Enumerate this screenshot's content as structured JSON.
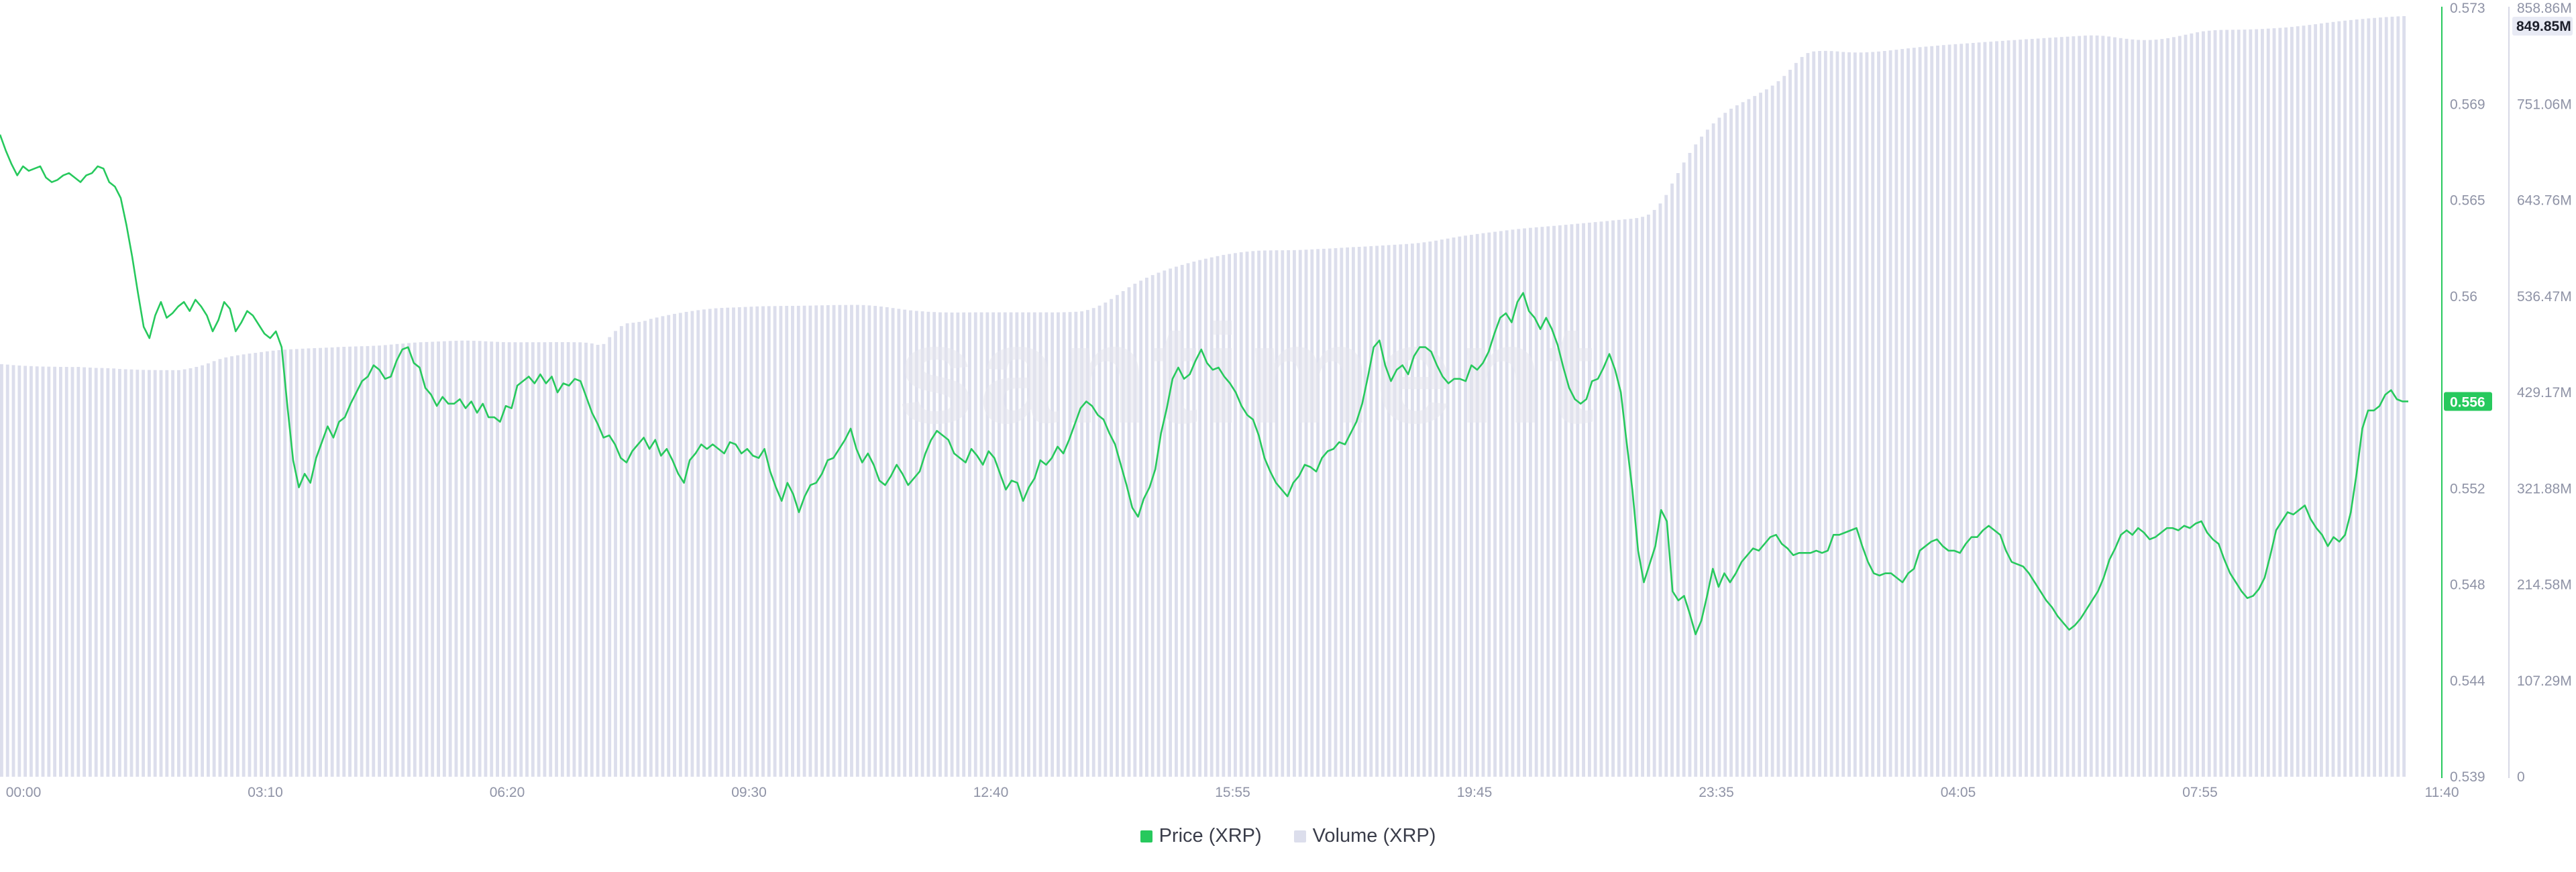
{
  "watermark": "santiment",
  "chart_data": {
    "type": "line",
    "title": "",
    "xlabel": "",
    "x_ticks": [
      "00:00",
      "03:10",
      "06:20",
      "09:30",
      "12:40",
      "15:55",
      "19:45",
      "23:35",
      "04:05",
      "07:55",
      "11:40"
    ],
    "y_left_ticks": [
      "0.573",
      "0.569",
      "0.565",
      "0.56",
      "0.556",
      "0.552",
      "0.548",
      "0.544",
      "0.539"
    ],
    "y_right_ticks": [
      "858.86M",
      "751.06M",
      "643.76M",
      "536.47M",
      "429.17M",
      "321.88M",
      "214.58M",
      "107.29M",
      "0"
    ],
    "price_ylim": [
      0.539,
      0.573
    ],
    "volume_ylim": [
      0,
      858.86
    ],
    "legend_position": "bottom-center",
    "current_price_label": "0.556",
    "current_volume_label": "849.85M",
    "series": [
      {
        "name": "Price (XRP)",
        "color": "#27c95d",
        "kind": "line",
        "axis": "left",
        "values": [
          0.5674,
          0.5667,
          0.5661,
          0.5656,
          0.566,
          0.5658,
          0.5659,
          0.566,
          0.5655,
          0.5653,
          0.5654,
          0.5656,
          0.5657,
          0.5655,
          0.5653,
          0.5656,
          0.5657,
          0.566,
          0.5659,
          0.5653,
          0.5651,
          0.5646,
          0.5634,
          0.562,
          0.5604,
          0.5589,
          0.5584,
          0.5594,
          0.56,
          0.5593,
          0.5595,
          0.5598,
          0.56,
          0.5596,
          0.5601,
          0.5598,
          0.5594,
          0.5587,
          0.5592,
          0.56,
          0.5597,
          0.5587,
          0.5591,
          0.5596,
          0.5594,
          0.559,
          0.5586,
          0.5584,
          0.5587,
          0.558,
          0.5554,
          0.553,
          0.5518,
          0.5524,
          0.552,
          0.5531,
          0.5538,
          0.5545,
          0.554,
          0.5547,
          0.5549,
          0.5555,
          0.556,
          0.5565,
          0.5567,
          0.5572,
          0.557,
          0.5566,
          0.5567,
          0.5574,
          0.5579,
          0.558,
          0.5573,
          0.5571,
          0.5562,
          0.5559,
          0.5554,
          0.5558,
          0.5555,
          0.5555,
          0.5557,
          0.5553,
          0.5556,
          0.5551,
          0.5555,
          0.5549,
          0.5549,
          0.5547,
          0.5554,
          0.5553,
          0.5563,
          0.5565,
          0.5567,
          0.5564,
          0.5568,
          0.5564,
          0.5567,
          0.556,
          0.5564,
          0.5563,
          0.5566,
          0.5565,
          0.5558,
          0.5551,
          0.5546,
          0.554,
          0.5541,
          0.5537,
          0.5531,
          0.5529,
          0.5534,
          0.5537,
          0.554,
          0.5535,
          0.5539,
          0.5532,
          0.5535,
          0.553,
          0.5524,
          0.552,
          0.553,
          0.5533,
          0.5537,
          0.5535,
          0.5537,
          0.5535,
          0.5533,
          0.5538,
          0.5537,
          0.5533,
          0.5535,
          0.5532,
          0.5531,
          0.5535,
          0.5525,
          0.5518,
          0.5512,
          0.552,
          0.5515,
          0.5507,
          0.5514,
          0.5519,
          0.552,
          0.5524,
          0.553,
          0.5531,
          0.5535,
          0.5539,
          0.5544,
          0.5535,
          0.5529,
          0.5533,
          0.5528,
          0.5521,
          0.5519,
          0.5523,
          0.5528,
          0.5524,
          0.5519,
          0.5522,
          0.5525,
          0.5533,
          0.5539,
          0.5543,
          0.5541,
          0.5539,
          0.5533,
          0.5531,
          0.5529,
          0.5535,
          0.5532,
          0.5528,
          0.5534,
          0.5531,
          0.5524,
          0.5517,
          0.5521,
          0.552,
          0.5512,
          0.5518,
          0.5522,
          0.553,
          0.5528,
          0.5531,
          0.5536,
          0.5533,
          0.5539,
          0.5546,
          0.5553,
          0.5556,
          0.5554,
          0.555,
          0.5548,
          0.5542,
          0.5537,
          0.5528,
          0.5519,
          0.5509,
          0.5505,
          0.5513,
          0.5518,
          0.5526,
          0.5542,
          0.5553,
          0.5566,
          0.5571,
          0.5566,
          0.5568,
          0.5574,
          0.5579,
          0.5573,
          0.557,
          0.5571,
          0.5567,
          0.5564,
          0.556,
          0.5554,
          0.555,
          0.5548,
          0.5541,
          0.5531,
          0.5525,
          0.552,
          0.5517,
          0.5514,
          0.552,
          0.5523,
          0.5528,
          0.5527,
          0.5525,
          0.5531,
          0.5534,
          0.5535,
          0.5538,
          0.5537,
          0.5542,
          0.5547,
          0.5555,
          0.5567,
          0.558,
          0.5583,
          0.5572,
          0.5565,
          0.557,
          0.5572,
          0.5568,
          0.5576,
          0.558,
          0.558,
          0.5578,
          0.5572,
          0.5567,
          0.5564,
          0.5566,
          0.5566,
          0.5565,
          0.5572,
          0.557,
          0.5573,
          0.5578,
          0.5586,
          0.5593,
          0.5595,
          0.5591,
          0.56,
          0.5604,
          0.5596,
          0.5593,
          0.5588,
          0.5593,
          0.5588,
          0.5581,
          0.5571,
          0.5562,
          0.5557,
          0.5555,
          0.5557,
          0.5565,
          0.5566,
          0.5571,
          0.5577,
          0.557,
          0.556,
          0.5538,
          0.5517,
          0.549,
          0.5476,
          0.5484,
          0.5492,
          0.5508,
          0.5503,
          0.5472,
          0.5468,
          0.547,
          0.5462,
          0.5453,
          0.5459,
          0.547,
          0.5482,
          0.5474,
          0.548,
          0.5476,
          0.548,
          0.5485,
          0.5488,
          0.5491,
          0.549,
          0.5493,
          0.5496,
          0.5497,
          0.5493,
          0.5491,
          0.5488,
          0.5489,
          0.5489,
          0.5489,
          0.549,
          0.5489,
          0.549,
          0.5497,
          0.5497,
          0.5498,
          0.5499,
          0.55,
          0.5492,
          0.5485,
          0.548,
          0.5479,
          0.548,
          0.548,
          0.5478,
          0.5476,
          0.548,
          0.5482,
          0.549,
          0.5492,
          0.5494,
          0.5495,
          0.5492,
          0.549,
          0.549,
          0.5489,
          0.5493,
          0.5496,
          0.5496,
          0.5499,
          0.5501,
          0.5499,
          0.5497,
          0.549,
          0.5485,
          0.5484,
          0.5483,
          0.548,
          0.5476,
          0.5472,
          0.5468,
          0.5465,
          0.5461,
          0.5458,
          0.5455,
          0.5457,
          0.546,
          0.5464,
          0.5468,
          0.5472,
          0.5478,
          0.5486,
          0.5491,
          0.5497,
          0.5499,
          0.5497,
          0.55,
          0.5498,
          0.5495,
          0.5496,
          0.5498,
          0.55,
          0.55,
          0.5499,
          0.5501,
          0.55,
          0.5502,
          0.5503,
          0.5498,
          0.5495,
          0.5493,
          0.5486,
          0.548,
          0.5476,
          0.5472,
          0.5469,
          0.547,
          0.5473,
          0.5478,
          0.5488,
          0.5499,
          0.5503,
          0.5507,
          0.5506,
          0.5508,
          0.551,
          0.5504,
          0.55,
          0.5497,
          0.5492,
          0.5496,
          0.5494,
          0.5497,
          0.5507,
          0.5524,
          0.5544,
          0.5552,
          0.5552,
          0.5554,
          0.5559,
          0.5561,
          0.5557,
          0.5556,
          0.5556
        ]
      },
      {
        "name": "Volume (XRP)",
        "color": "#dcdeec",
        "kind": "bar",
        "axis": "right",
        "values": [
          461.0,
          460.5,
          459.9,
          459.5,
          459.1,
          458.8,
          458.5,
          458.3,
          458.2,
          458.1,
          457.9,
          457.9,
          457.8,
          457.9,
          457.5,
          457.2,
          456.8,
          456.7,
          456.5,
          456.2,
          455.6,
          455.3,
          455.1,
          454.8,
          454.6,
          454.5,
          454.4,
          454.3,
          454.3,
          454.3,
          454.3,
          455.2,
          456.4,
          457.9,
          459.7,
          461.9,
          464.4,
          466.7,
          468.5,
          469.8,
          470.9,
          471.9,
          472.8,
          473.6,
          474.5,
          475.3,
          476.1,
          476.7,
          477.2,
          477.6,
          477.9,
          478.3,
          478.6,
          478.9,
          479.1,
          479.4,
          479.7,
          480.1,
          480.4,
          480.6,
          480.8,
          481.0,
          481.2,
          481.5,
          481.8,
          482.3,
          482.9,
          483.5,
          484.0,
          484.6,
          485.1,
          485.5,
          485.7,
          486.0,
          486.3,
          486.6,
          486.9,
          487.1,
          487.3,
          487.3,
          487.1,
          486.9,
          486.5,
          486.2,
          485.9,
          485.6,
          485.5,
          485.5,
          485.4,
          485.5,
          485.5,
          485.5,
          485.5,
          485.6,
          485.6,
          485.6,
          485.6,
          485.5,
          485.4,
          485.0,
          484.1,
          482.6,
          483.5,
          491.2,
          498.1,
          503.5,
          506.6,
          507.3,
          508.2,
          509.4,
          511.6,
          513.1,
          514.6,
          515.9,
          517.2,
          518.3,
          519.4,
          520.4,
          521.3,
          522.1,
          522.8,
          523.4,
          523.8,
          524.1,
          524.3,
          524.6,
          524.9,
          525.2,
          525.5,
          525.7,
          525.8,
          525.9,
          526.0,
          526.1,
          526.1,
          526.2,
          526.3,
          526.4,
          526.6,
          526.7,
          526.9,
          527.0,
          527.1,
          527.1,
          527.2,
          527.2,
          527.0,
          526.6,
          526.1,
          525.4,
          524.6,
          523.7,
          522.8,
          521.9,
          521.1,
          520.5,
          520.0,
          519.5,
          519.2,
          518.9,
          518.8,
          518.7,
          518.7,
          518.8,
          518.8,
          518.9,
          518.9,
          518.9,
          518.9,
          518.9,
          518.9,
          518.9,
          518.9,
          518.9,
          518.9,
          518.9,
          518.9,
          518.9,
          518.8,
          518.9,
          519.0,
          519.2,
          519.5,
          520.0,
          521.5,
          523.7,
          526.4,
          529.8,
          533.8,
          538.3,
          542.6,
          546.9,
          550.9,
          554.3,
          557.6,
          560.5,
          563.2,
          565.6,
          567.8,
          569.9,
          571.9,
          573.8,
          575.6,
          577.3,
          578.8,
          580.3,
          581.7,
          583.0,
          584.1,
          585.1,
          586.0,
          586.7,
          587.3,
          587.8,
          588.0,
          588.1,
          588.2,
          588.2,
          588.3,
          588.4,
          588.6,
          588.9,
          589.2,
          589.6,
          589.9,
          590.2,
          590.6,
          591.0,
          591.4,
          591.8,
          592.1,
          592.4,
          592.8,
          593.2,
          593.6,
          594.0,
          594.4,
          594.8,
          595.2,
          595.7,
          596.3,
          597.1,
          598.0,
          599.0,
          600.2,
          601.3,
          602.5,
          603.6,
          604.6,
          605.5,
          606.4,
          607.3,
          608.1,
          608.9,
          609.7,
          610.5,
          611.3,
          612.0,
          612.7,
          613.3,
          613.9,
          614.4,
          615.0,
          615.5,
          616.1,
          616.7,
          617.3,
          617.9,
          618.5,
          619.1,
          619.7,
          620.3,
          620.9,
          621.6,
          622.2,
          622.8,
          623.4,
          624.2,
          625.6,
          628.1,
          633.3,
          640.5,
          650.0,
          662.8,
          674.5,
          686.3,
          697.0,
          706.5,
          715.2,
          723.0,
          730.0,
          736.4,
          741.8,
          746.4,
          750.2,
          753.7,
          757.1,
          760.6,
          764.3,
          768.0,
          772.2,
          777.1,
          783.0,
          789.9,
          797.5,
          804.2,
          808.6,
          810.4,
          810.9,
          811.0,
          810.8,
          810.4,
          809.8,
          809.4,
          809.2,
          809.2,
          809.4,
          809.8,
          810.3,
          810.9,
          811.6,
          812.3,
          813.1,
          813.8,
          814.5,
          815.2,
          815.8,
          816.3,
          816.9,
          817.5,
          818.0,
          818.5,
          818.9,
          819.4,
          819.9,
          820.4,
          820.9,
          821.3,
          821.8,
          822.2,
          822.7,
          823.1,
          823.6,
          824.0,
          824.4,
          824.8,
          825.3,
          825.7,
          826.1,
          826.5,
          826.9,
          827.3,
          827.7,
          828.1,
          828.3,
          828.2,
          827.8,
          827.1,
          826.2,
          825.3,
          824.5,
          823.8,
          823.3,
          823.1,
          823.2,
          823.6,
          824.3,
          825.2,
          826.4,
          827.7,
          829.1,
          830.5,
          831.8,
          832.9,
          833.6,
          834.1,
          834.4,
          834.5,
          834.6,
          834.7,
          834.8,
          835.0,
          835.2,
          835.5,
          835.9,
          836.3,
          836.7,
          837.2,
          837.8,
          838.5,
          839.2,
          840.0,
          840.8,
          841.7,
          842.5,
          843.3,
          844.1,
          844.8,
          845.5,
          846.1,
          846.7,
          847.3,
          847.8,
          848.3,
          848.8,
          849.2,
          849.6,
          849.85
        ]
      }
    ]
  }
}
